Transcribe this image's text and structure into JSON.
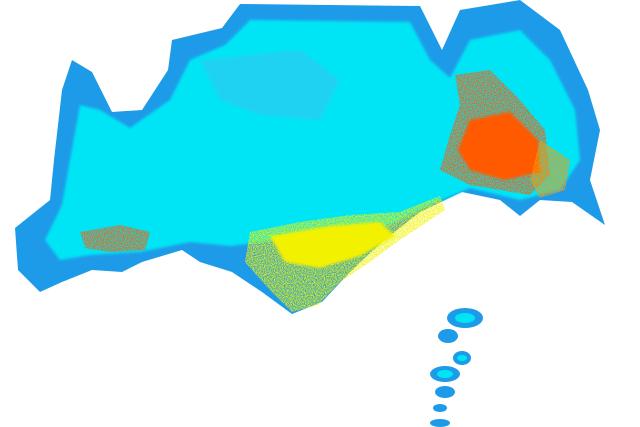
{
  "map": {
    "background": "#ffffff",
    "palette": {
      "outer": "#1e9be8",
      "main": "#00e5f5",
      "mid": "#3fc0f0",
      "high": "#f2f200",
      "peak": "#ff5a00",
      "peak_alt": "#ff9a00"
    },
    "regions": [
      "outer-band",
      "main-mass",
      "southern-yellow-zone",
      "eastern-orange-core",
      "western-orange-streak",
      "southeast-islands"
    ]
  }
}
